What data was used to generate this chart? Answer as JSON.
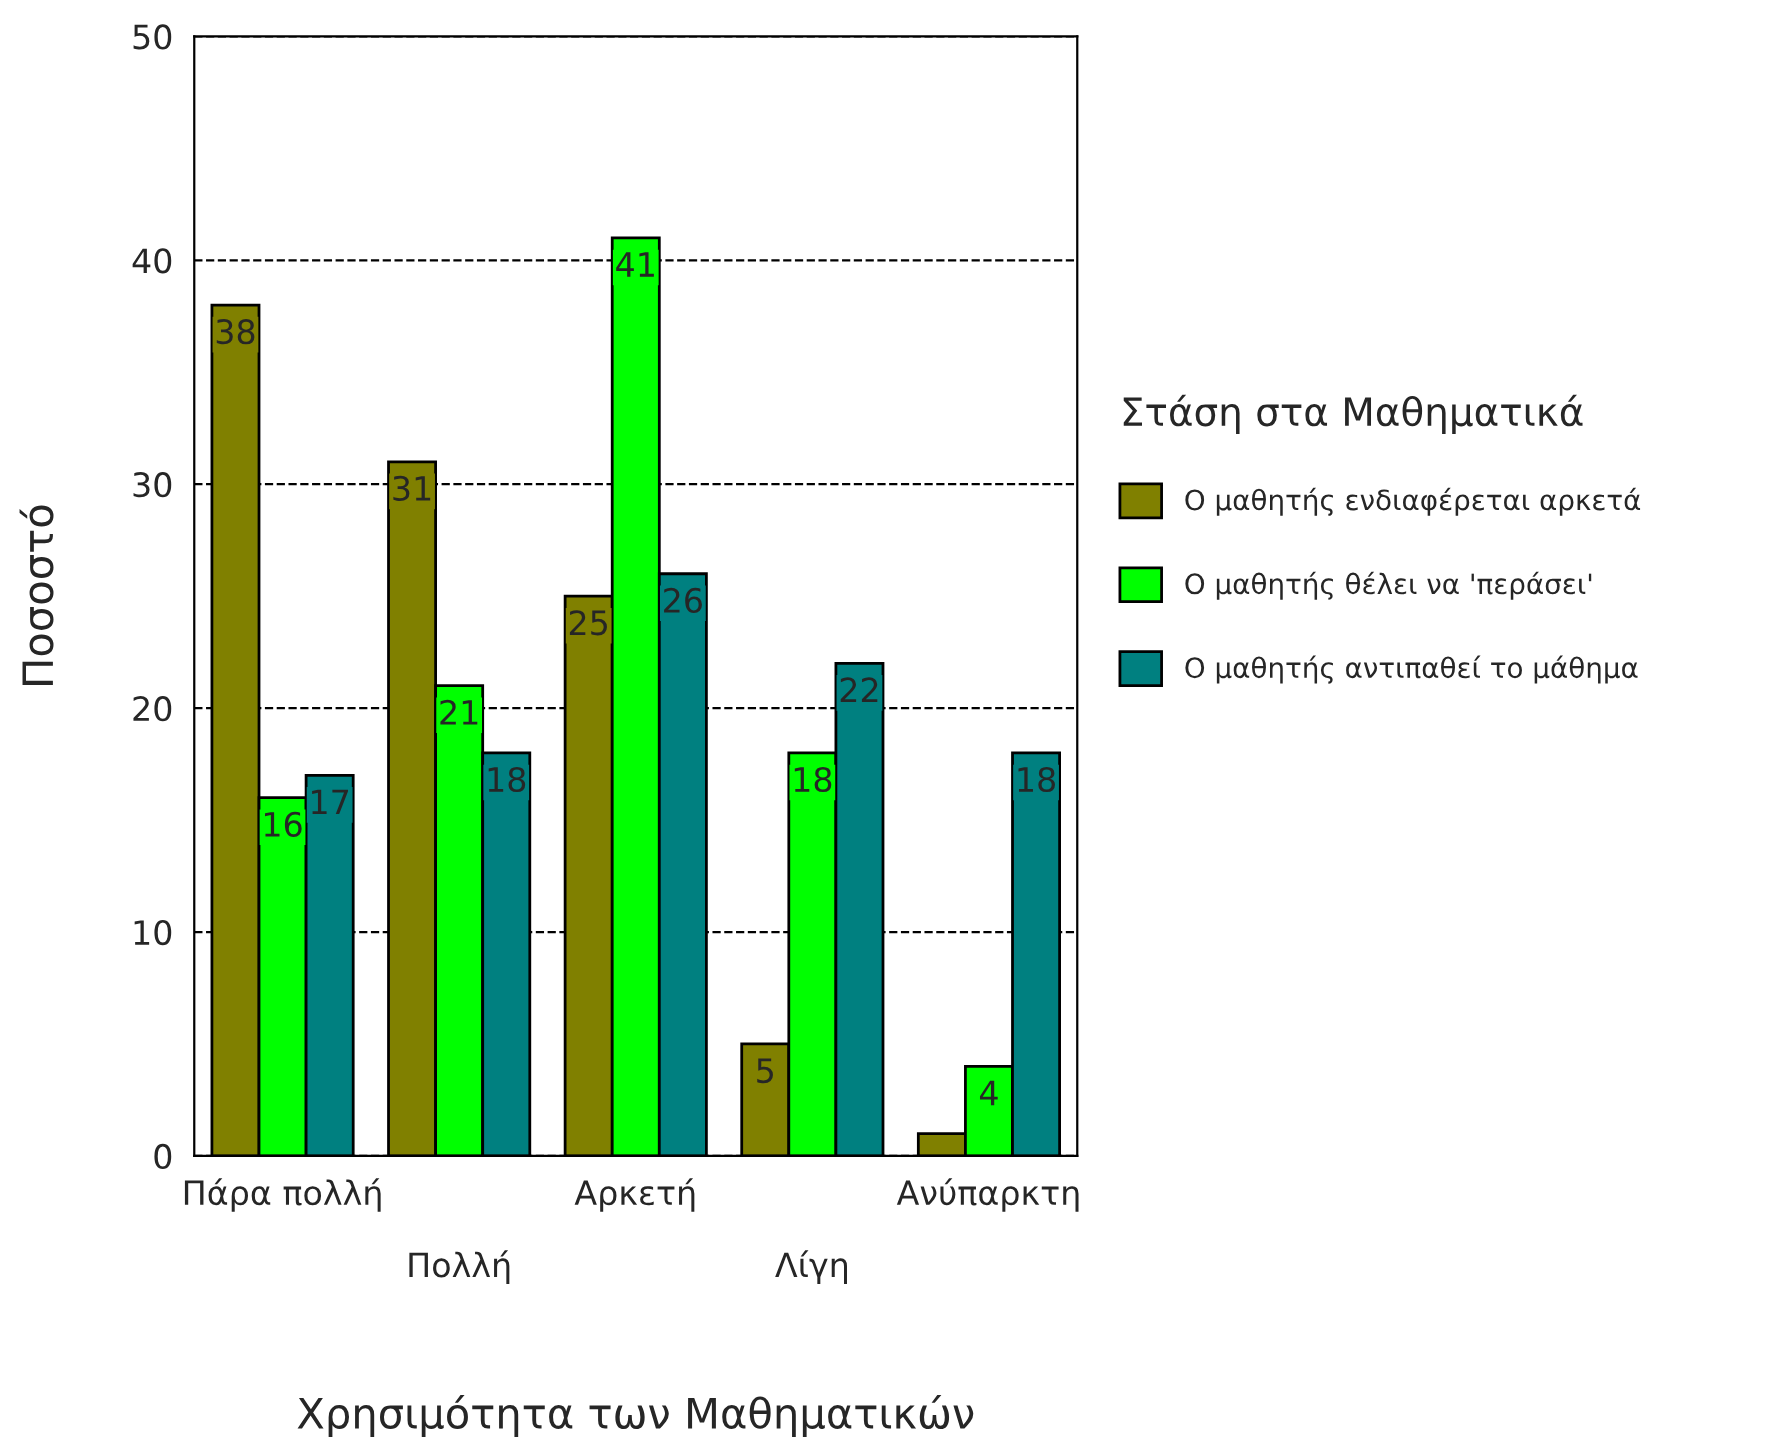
{
  "chart_data": {
    "type": "bar",
    "categories": [
      "Πάρα πολλή",
      "Πολλή",
      "Αρκετή",
      "Λίγη",
      "Ανύπαρκτη"
    ],
    "series": [
      {
        "name": "Ο μαθητής ενδιαφέρεται αρκετά",
        "color": "#808000",
        "values": [
          38,
          31,
          25,
          5,
          1
        ],
        "value_labels": [
          "38",
          "31",
          "25",
          "5",
          null
        ]
      },
      {
        "name": "Ο μαθητής θέλει να 'περάσει'",
        "color": "#00ff00",
        "values": [
          16,
          21,
          41,
          18,
          4
        ],
        "value_labels": [
          "16",
          "21",
          "41",
          "18",
          "4"
        ]
      },
      {
        "name": "Ο μαθητής αντιπαθεί το μάθημα",
        "color": "#008080",
        "values": [
          17,
          18,
          26,
          22,
          18
        ],
        "value_labels": [
          "17",
          "18",
          "26",
          "22",
          "18"
        ]
      }
    ],
    "xlabel": "Χρησιμότητα των Μαθηματικών",
    "ylabel": "Ποσοστό",
    "legend_title": "Στάση στα Μαθηματικά",
    "ylim": [
      0,
      50
    ],
    "yticks": [
      0,
      10,
      20,
      30,
      40,
      50
    ],
    "grid": "y",
    "legend": "right"
  }
}
